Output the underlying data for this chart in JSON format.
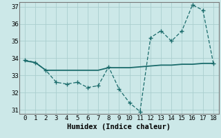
{
  "xlabel": "Humidex (Indice chaleur)",
  "background_color": "#cce8e8",
  "line_color": "#1a6b6b",
  "grid_color": "#aacece",
  "x": [
    0,
    1,
    2,
    3,
    4,
    5,
    6,
    7,
    8,
    9,
    10,
    11,
    12,
    13,
    14,
    15,
    16,
    17,
    18
  ],
  "y_dashed": [
    33.9,
    33.75,
    33.3,
    32.6,
    32.5,
    32.6,
    32.3,
    32.4,
    33.5,
    32.2,
    31.4,
    30.9,
    35.2,
    35.6,
    35.0,
    35.6,
    37.1,
    36.8,
    33.7
  ],
  "y_solid": [
    33.85,
    33.75,
    33.3,
    33.3,
    33.3,
    33.3,
    33.3,
    33.3,
    33.45,
    33.45,
    33.45,
    33.5,
    33.55,
    33.6,
    33.6,
    33.65,
    33.65,
    33.7,
    33.7
  ],
  "ylim": [
    30.75,
    37.25
  ],
  "xlim": [
    -0.5,
    18.5
  ],
  "yticks": [
    31,
    32,
    33,
    34,
    35,
    36,
    37
  ],
  "xticks": [
    0,
    1,
    2,
    3,
    4,
    5,
    6,
    7,
    8,
    9,
    10,
    11,
    12,
    13,
    14,
    15,
    16,
    17,
    18
  ],
  "tick_fontsize": 6.5,
  "xlabel_fontsize": 7.5
}
